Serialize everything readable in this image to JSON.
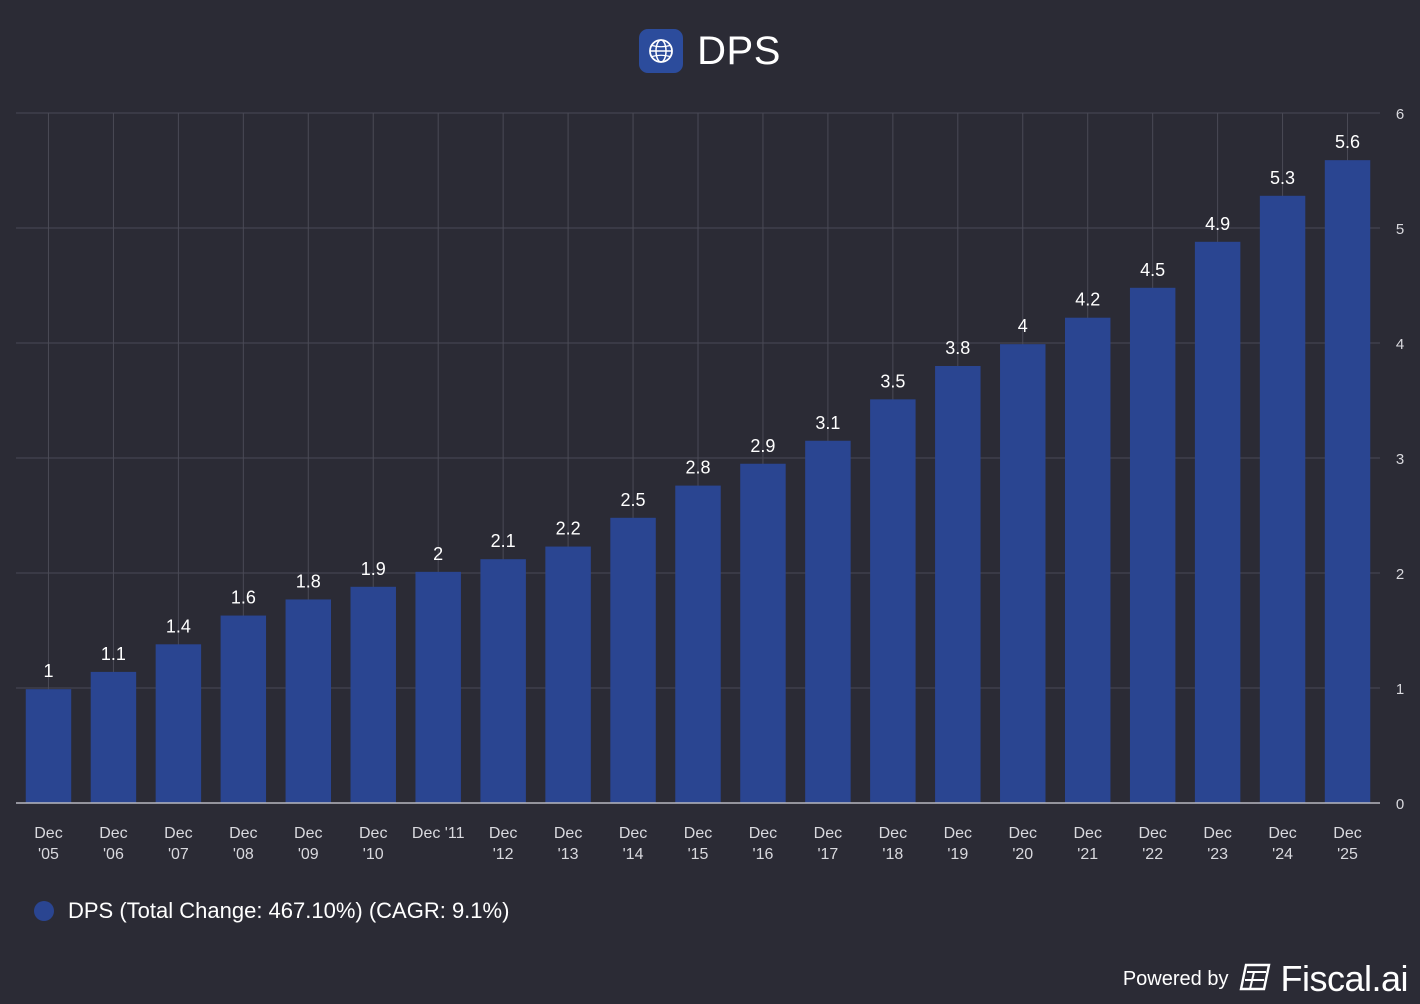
{
  "header": {
    "title": "DPS",
    "logo_icon": "globe-icon"
  },
  "footer": {
    "powered_by": "Powered by",
    "brand": "Fiscal.ai",
    "brand_icon": "fiscal-logo-icon"
  },
  "colors": {
    "background": "#2b2b35",
    "bar": "#2a4591",
    "grid": "#4a4a56",
    "text": "#ffffff",
    "axis_text": "#d9d9de"
  },
  "chart_data": {
    "type": "bar",
    "title": "DPS",
    "categories": [
      [
        "Dec",
        "'05"
      ],
      [
        "Dec",
        "'06"
      ],
      [
        "Dec",
        "'07"
      ],
      [
        "Dec",
        "'08"
      ],
      [
        "Dec",
        "'09"
      ],
      [
        "Dec",
        "'10"
      ],
      [
        "Dec '11"
      ],
      [
        "Dec",
        "'12"
      ],
      [
        "Dec",
        "'13"
      ],
      [
        "Dec",
        "'14"
      ],
      [
        "Dec",
        "'15"
      ],
      [
        "Dec",
        "'16"
      ],
      [
        "Dec",
        "'17"
      ],
      [
        "Dec",
        "'18"
      ],
      [
        "Dec",
        "'19"
      ],
      [
        "Dec",
        "'20"
      ],
      [
        "Dec",
        "'21"
      ],
      [
        "Dec",
        "'22"
      ],
      [
        "Dec",
        "'23"
      ],
      [
        "Dec",
        "'24"
      ],
      [
        "Dec",
        "'25"
      ]
    ],
    "series": [
      {
        "name": "DPS",
        "values": [
          0.99,
          1.14,
          1.38,
          1.63,
          1.77,
          1.88,
          2.01,
          2.12,
          2.23,
          2.48,
          2.76,
          2.95,
          3.15,
          3.51,
          3.8,
          3.99,
          4.22,
          4.48,
          4.88,
          5.28,
          5.59
        ],
        "labels": [
          "1",
          "1.1",
          "1.4",
          "1.6",
          "1.8",
          "1.9",
          "2",
          "2.1",
          "2.2",
          "2.5",
          "2.8",
          "2.9",
          "3.1",
          "3.5",
          "3.8",
          "4",
          "4.2",
          "4.5",
          "4.9",
          "5.3",
          "5.6"
        ]
      }
    ],
    "y_ticks": [
      "0",
      "1",
      "2",
      "3",
      "4",
      "5",
      "6"
    ],
    "ylim": [
      0,
      6
    ],
    "y_axis_side": "right",
    "grid": true,
    "legend": {
      "position": "bottom-left",
      "text": "DPS (Total Change: 467.10%) (CAGR: 9.1%)"
    }
  }
}
